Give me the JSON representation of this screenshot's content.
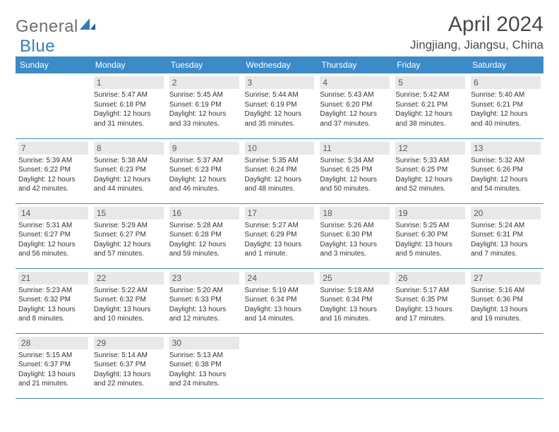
{
  "logo": {
    "part1": "General",
    "part2": "Blue"
  },
  "header": {
    "title": "April 2024",
    "location": "Jingjiang, Jiangsu, China"
  },
  "colors": {
    "header_bg": "#3b8bc9",
    "header_text": "#ffffff",
    "daynum_bg": "#e8e8e8",
    "border": "#3b8bc9",
    "logo_gray": "#6d6e71",
    "logo_blue": "#2d7fc1"
  },
  "weekdays": [
    "Sunday",
    "Monday",
    "Tuesday",
    "Wednesday",
    "Thursday",
    "Friday",
    "Saturday"
  ],
  "cells": [
    {
      "blank": true
    },
    {
      "n": "1",
      "sr": "5:47 AM",
      "ss": "6:18 PM",
      "dl": "12 hours and 31 minutes."
    },
    {
      "n": "2",
      "sr": "5:45 AM",
      "ss": "6:19 PM",
      "dl": "12 hours and 33 minutes."
    },
    {
      "n": "3",
      "sr": "5:44 AM",
      "ss": "6:19 PM",
      "dl": "12 hours and 35 minutes."
    },
    {
      "n": "4",
      "sr": "5:43 AM",
      "ss": "6:20 PM",
      "dl": "12 hours and 37 minutes."
    },
    {
      "n": "5",
      "sr": "5:42 AM",
      "ss": "6:21 PM",
      "dl": "12 hours and 38 minutes."
    },
    {
      "n": "6",
      "sr": "5:40 AM",
      "ss": "6:21 PM",
      "dl": "12 hours and 40 minutes."
    },
    {
      "n": "7",
      "sr": "5:39 AM",
      "ss": "6:22 PM",
      "dl": "12 hours and 42 minutes."
    },
    {
      "n": "8",
      "sr": "5:38 AM",
      "ss": "6:23 PM",
      "dl": "12 hours and 44 minutes."
    },
    {
      "n": "9",
      "sr": "5:37 AM",
      "ss": "6:23 PM",
      "dl": "12 hours and 46 minutes."
    },
    {
      "n": "10",
      "sr": "5:35 AM",
      "ss": "6:24 PM",
      "dl": "12 hours and 48 minutes."
    },
    {
      "n": "11",
      "sr": "5:34 AM",
      "ss": "6:25 PM",
      "dl": "12 hours and 50 minutes."
    },
    {
      "n": "12",
      "sr": "5:33 AM",
      "ss": "6:25 PM",
      "dl": "12 hours and 52 minutes."
    },
    {
      "n": "13",
      "sr": "5:32 AM",
      "ss": "6:26 PM",
      "dl": "12 hours and 54 minutes."
    },
    {
      "n": "14",
      "sr": "5:31 AM",
      "ss": "6:27 PM",
      "dl": "12 hours and 56 minutes."
    },
    {
      "n": "15",
      "sr": "5:29 AM",
      "ss": "6:27 PM",
      "dl": "12 hours and 57 minutes."
    },
    {
      "n": "16",
      "sr": "5:28 AM",
      "ss": "6:28 PM",
      "dl": "12 hours and 59 minutes."
    },
    {
      "n": "17",
      "sr": "5:27 AM",
      "ss": "6:29 PM",
      "dl": "13 hours and 1 minute."
    },
    {
      "n": "18",
      "sr": "5:26 AM",
      "ss": "6:30 PM",
      "dl": "13 hours and 3 minutes."
    },
    {
      "n": "19",
      "sr": "5:25 AM",
      "ss": "6:30 PM",
      "dl": "13 hours and 5 minutes."
    },
    {
      "n": "20",
      "sr": "5:24 AM",
      "ss": "6:31 PM",
      "dl": "13 hours and 7 minutes."
    },
    {
      "n": "21",
      "sr": "5:23 AM",
      "ss": "6:32 PM",
      "dl": "13 hours and 8 minutes."
    },
    {
      "n": "22",
      "sr": "5:22 AM",
      "ss": "6:32 PM",
      "dl": "13 hours and 10 minutes."
    },
    {
      "n": "23",
      "sr": "5:20 AM",
      "ss": "6:33 PM",
      "dl": "13 hours and 12 minutes."
    },
    {
      "n": "24",
      "sr": "5:19 AM",
      "ss": "6:34 PM",
      "dl": "13 hours and 14 minutes."
    },
    {
      "n": "25",
      "sr": "5:18 AM",
      "ss": "6:34 PM",
      "dl": "13 hours and 16 minutes."
    },
    {
      "n": "26",
      "sr": "5:17 AM",
      "ss": "6:35 PM",
      "dl": "13 hours and 17 minutes."
    },
    {
      "n": "27",
      "sr": "5:16 AM",
      "ss": "6:36 PM",
      "dl": "13 hours and 19 minutes."
    },
    {
      "n": "28",
      "sr": "5:15 AM",
      "ss": "6:37 PM",
      "dl": "13 hours and 21 minutes."
    },
    {
      "n": "29",
      "sr": "5:14 AM",
      "ss": "6:37 PM",
      "dl": "13 hours and 22 minutes."
    },
    {
      "n": "30",
      "sr": "5:13 AM",
      "ss": "6:38 PM",
      "dl": "13 hours and 24 minutes."
    },
    {
      "blank": true
    },
    {
      "blank": true
    },
    {
      "blank": true
    },
    {
      "blank": true
    }
  ],
  "labels": {
    "sunrise": "Sunrise:",
    "sunset": "Sunset:",
    "daylight": "Daylight:"
  }
}
